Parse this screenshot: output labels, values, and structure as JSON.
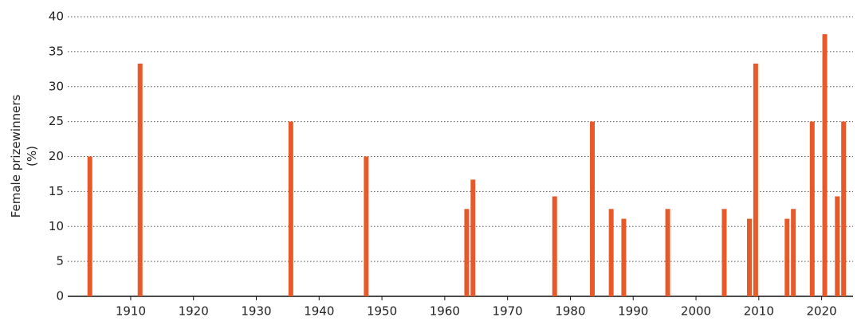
{
  "chart_data": {
    "type": "bar",
    "ylabel": [
      "Female prizewinners",
      "(%)"
    ],
    "x": [
      1903,
      1911,
      1935,
      1947,
      1963,
      1964,
      1977,
      1983,
      1986,
      1988,
      1995,
      2004,
      2008,
      2009,
      2014,
      2015,
      2018,
      2020,
      2022,
      2023
    ],
    "values": [
      20,
      33.3,
      25,
      20,
      12.5,
      16.7,
      14.3,
      25,
      12.5,
      11.1,
      12.5,
      12.5,
      11.1,
      33.3,
      11.1,
      12.5,
      25,
      37.5,
      14.3,
      25
    ],
    "color": "#e8592a",
    "xlim": [
      1901,
      2025
    ],
    "xticks": [
      1910,
      1920,
      1930,
      1940,
      1950,
      1960,
      1970,
      1980,
      1990,
      2000,
      2010,
      2020
    ],
    "ylim": [
      0,
      40
    ],
    "yticks": [
      0,
      5,
      10,
      15,
      20,
      25,
      30,
      35,
      40
    ],
    "grid": true
  }
}
